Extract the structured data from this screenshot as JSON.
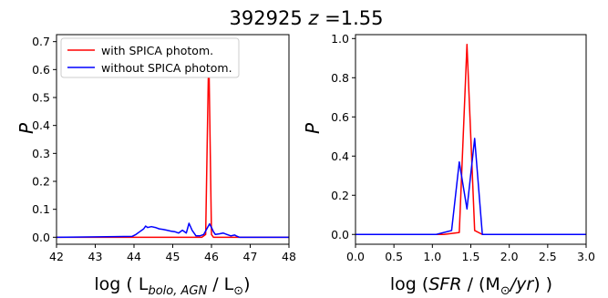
{
  "title": {
    "id": "392925",
    "z_symbol": "z",
    "z_value": "=1.55"
  },
  "chart_data": [
    {
      "type": "line",
      "ylabel": "P",
      "xlabel": {
        "pre": "log ( L",
        "sub": "bolo, AGN",
        "mid": " / L",
        "sun": "⊙",
        "post": ")"
      },
      "xlim": [
        42,
        48
      ],
      "ylim": [
        -0.025,
        0.725
      ],
      "xticks": [
        "42",
        "43",
        "44",
        "45",
        "46",
        "47",
        "48"
      ],
      "yticks": [
        "0.0",
        "0.1",
        "0.2",
        "0.3",
        "0.4",
        "0.5",
        "0.6",
        "0.7"
      ],
      "legend": {
        "position": "top-left",
        "entries": [
          {
            "label": "with SPICA photom.",
            "color": "#ff0000"
          },
          {
            "label": "without SPICA photom.",
            "color": "#0000ff"
          }
        ]
      },
      "series": [
        {
          "name": "with SPICA photom.",
          "color": "#ff0000",
          "x": [
            42.0,
            45.5,
            45.75,
            45.85,
            45.93,
            46.0,
            46.05,
            48.0
          ],
          "y": [
            0.0,
            0.0,
            0.0,
            0.01,
            0.67,
            0.01,
            0.0,
            0.0
          ]
        },
        {
          "name": "without SPICA photom.",
          "color": "#0000ff",
          "x": [
            42.0,
            43.95,
            44.05,
            44.15,
            44.25,
            44.3,
            44.35,
            44.45,
            44.55,
            44.65,
            44.75,
            44.85,
            44.95,
            45.05,
            45.15,
            45.25,
            45.35,
            45.42,
            45.5,
            45.6,
            45.7,
            45.8,
            45.88,
            45.95,
            46.0,
            46.05,
            46.1,
            46.2,
            46.3,
            46.4,
            46.5,
            46.6,
            46.65,
            46.72,
            46.8,
            48.0
          ],
          "y": [
            0.0,
            0.003,
            0.01,
            0.02,
            0.03,
            0.04,
            0.035,
            0.038,
            0.035,
            0.03,
            0.028,
            0.025,
            0.022,
            0.02,
            0.015,
            0.025,
            0.015,
            0.05,
            0.025,
            0.005,
            0.005,
            0.01,
            0.03,
            0.048,
            0.035,
            0.02,
            0.01,
            0.012,
            0.015,
            0.01,
            0.005,
            0.008,
            0.004,
            0.0,
            0.0,
            0.0
          ]
        }
      ]
    },
    {
      "type": "line",
      "ylabel": "P",
      "xlabel": {
        "pre": "log (",
        "ital": "SFR",
        "mid": " / (M",
        "sun": "⊙",
        "ital2": "/yr",
        "post": ") )"
      },
      "xlim": [
        0.0,
        3.0
      ],
      "ylim": [
        -0.05,
        1.02
      ],
      "xticks": [
        "0.0",
        "0.5",
        "1.0",
        "1.5",
        "2.0",
        "2.5",
        "3.0"
      ],
      "yticks": [
        "0.0",
        "0.2",
        "0.4",
        "0.6",
        "0.8",
        "1.0"
      ],
      "series": [
        {
          "name": "with SPICA photom.",
          "color": "#ff0000",
          "x": [
            0.0,
            1.15,
            1.35,
            1.45,
            1.55,
            1.65,
            3.0
          ],
          "y": [
            0.0,
            0.0,
            0.01,
            0.97,
            0.02,
            0.0,
            0.0
          ]
        },
        {
          "name": "without SPICA photom.",
          "color": "#0000ff",
          "x": [
            0.0,
            1.05,
            1.25,
            1.35,
            1.45,
            1.55,
            1.65,
            3.0
          ],
          "y": [
            0.0,
            0.0,
            0.02,
            0.37,
            0.13,
            0.49,
            0.0,
            0.0
          ]
        }
      ]
    }
  ]
}
